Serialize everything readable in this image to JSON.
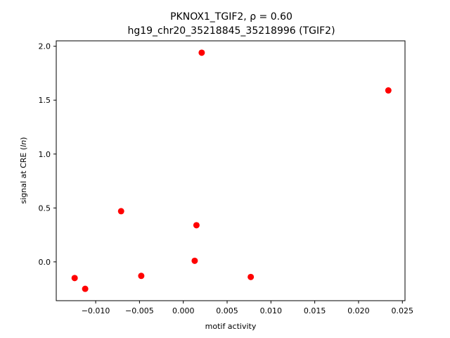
{
  "chart_data": {
    "type": "scatter",
    "title_line1": "PKNOX1_TGIF2, ρ = 0.60",
    "title_line2": "hg19_chr20_35218845_35218996 (TGIF2)",
    "xlabel": "motif activity",
    "ylabel": "signal at CRE (ln)",
    "xlim": [
      -0.0145,
      0.0253
    ],
    "ylim": [
      -0.36,
      2.05
    ],
    "xticks": [
      -0.01,
      -0.005,
      0.0,
      0.005,
      0.01,
      0.015,
      0.02,
      0.025
    ],
    "xtick_labels": [
      "−0.010",
      "−0.005",
      "0.000",
      "0.005",
      "0.010",
      "0.015",
      "0.020",
      "0.025"
    ],
    "yticks": [
      0.0,
      0.5,
      1.0,
      1.5,
      2.0
    ],
    "ytick_labels": [
      "0.0",
      "0.5",
      "1.0",
      "1.5",
      "2.0"
    ],
    "grid": false,
    "point_color": "#ff0000",
    "points": [
      {
        "x": -0.0124,
        "y": -0.15
      },
      {
        "x": -0.0112,
        "y": -0.25
      },
      {
        "x": -0.0071,
        "y": 0.47
      },
      {
        "x": -0.0048,
        "y": -0.13
      },
      {
        "x": 0.0013,
        "y": 0.01
      },
      {
        "x": 0.0015,
        "y": 0.34
      },
      {
        "x": 0.0021,
        "y": 1.94
      },
      {
        "x": 0.0077,
        "y": -0.14
      },
      {
        "x": 0.0234,
        "y": 1.59
      }
    ]
  }
}
